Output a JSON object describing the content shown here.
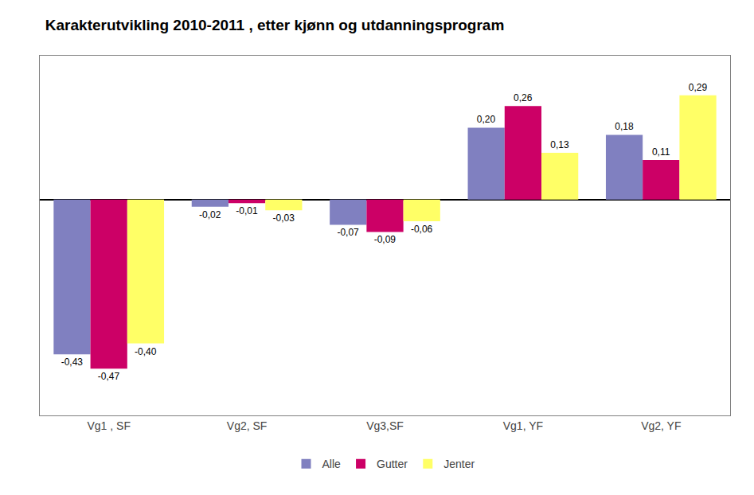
{
  "chart_data": {
    "type": "bar",
    "title": "Karakterutvikling 2010-2011 , etter kjønn og utdanningsprogram",
    "categories": [
      "Vg1 , SF",
      "Vg2, SF",
      "Vg3,SF",
      "Vg1, YF",
      "Vg2, YF"
    ],
    "series": [
      {
        "name": "Alle",
        "color": "#8080C0",
        "values": [
          -0.43,
          -0.02,
          -0.07,
          0.2,
          0.18
        ],
        "value_labels": [
          "-0,43",
          "-0,02",
          "-0,07",
          "0,20",
          "0,18"
        ]
      },
      {
        "name": "Gutter",
        "color": "#CC0066",
        "values": [
          -0.47,
          -0.01,
          -0.09,
          0.26,
          0.11
        ],
        "value_labels": [
          "-0,47",
          "-0,01",
          "-0,09",
          "0,26",
          "0,11"
        ]
      },
      {
        "name": "Jenter",
        "color": "#FFFF66",
        "values": [
          -0.4,
          -0.03,
          -0.06,
          0.13,
          0.29
        ],
        "value_labels": [
          "-0,40",
          "-0,03",
          "-0,06",
          "0,13",
          "0,29"
        ]
      }
    ],
    "ylim": [
      -0.6,
      0.4
    ],
    "grid": false,
    "legend": "bottom",
    "data_labels": true,
    "tick_labels": "x"
  }
}
